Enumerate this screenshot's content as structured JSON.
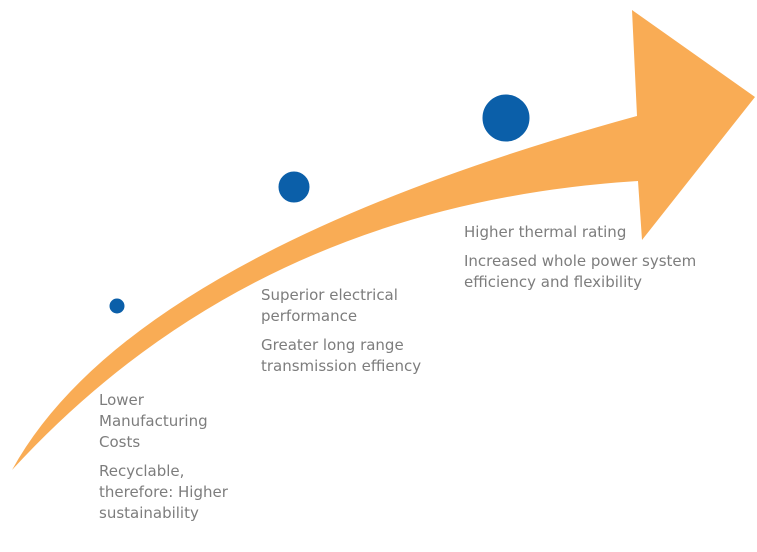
{
  "colors": {
    "arrow": "#F9AC55",
    "dot": "#0B5FA9",
    "dot_stroke": "#ffffff",
    "text": "#7d7d7d"
  },
  "milestones": [
    {
      "lines": [
        "Lower Manufacturing Costs",
        "Recyclable, therefore: Higher sustainability"
      ]
    },
    {
      "lines": [
        "Superior electrical performance",
        "Greater long range transmission effiency"
      ]
    },
    {
      "lines": [
        "Higher thermal rating",
        "Increased whole power system efficiency and flexibility"
      ]
    }
  ]
}
